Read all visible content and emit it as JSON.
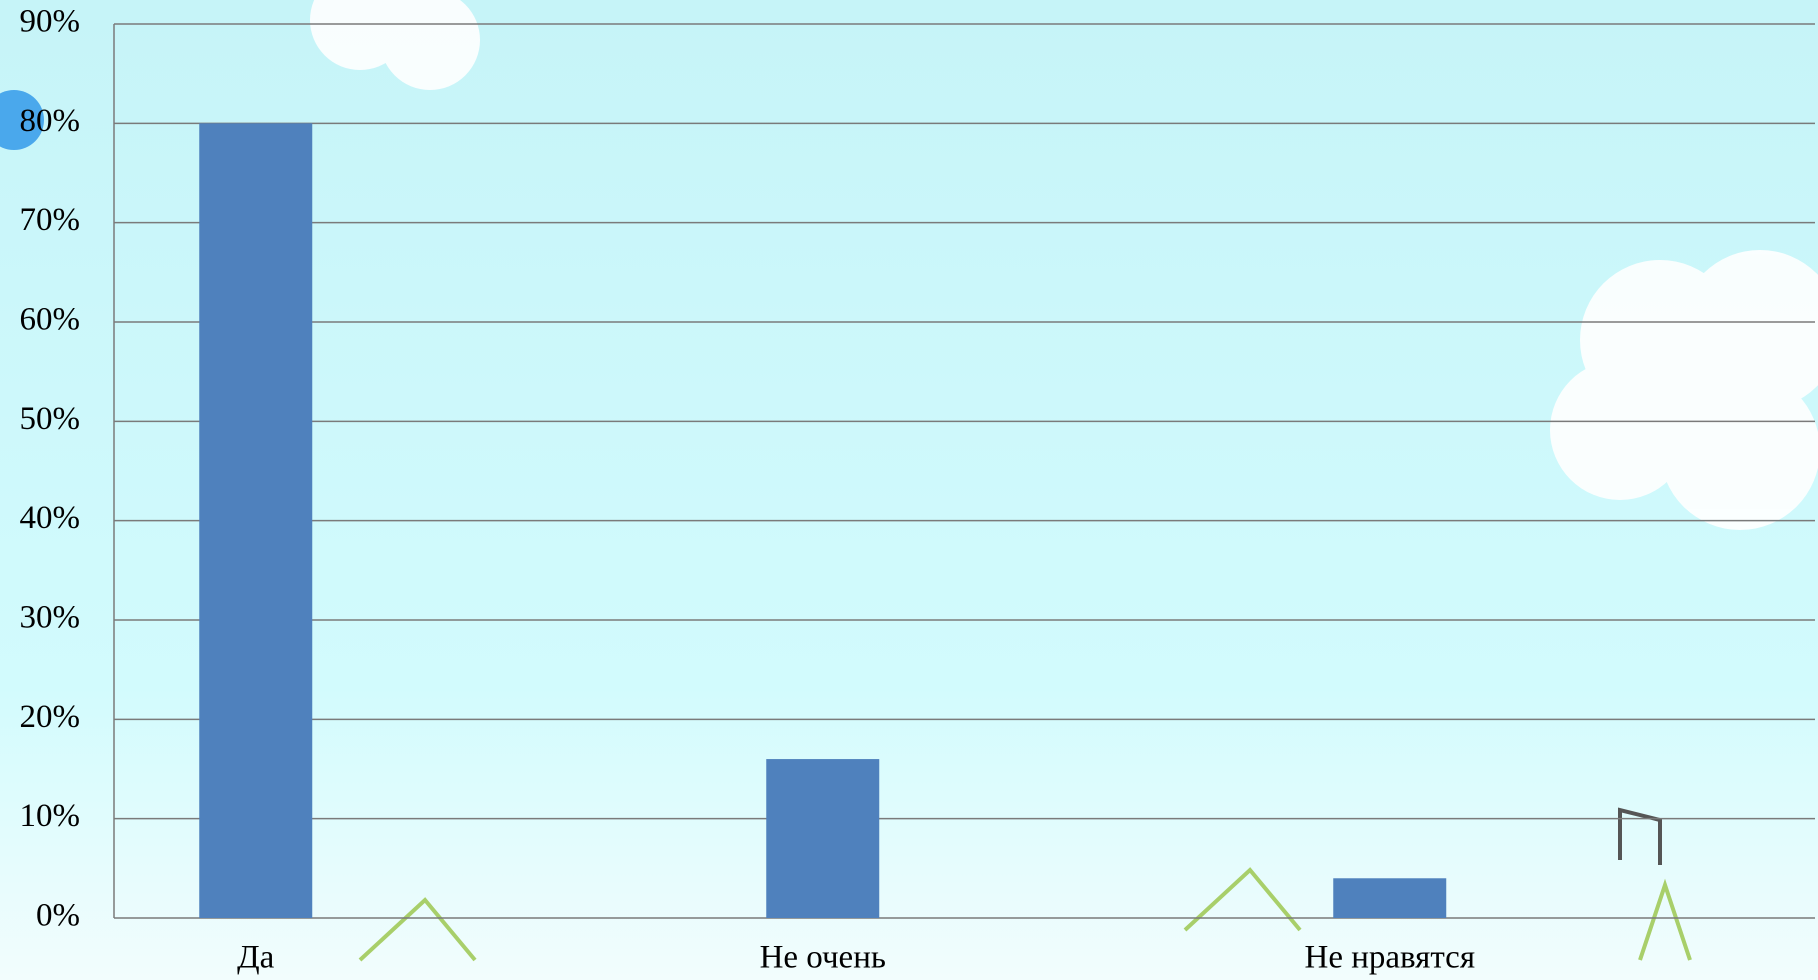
{
  "chart_data": {
    "type": "bar",
    "categories": [
      "Да",
      "Не очень",
      "Не нравятся"
    ],
    "values": [
      80,
      16,
      4
    ],
    "color": "#4f81bd",
    "ylim": [
      0,
      90
    ],
    "yticks": [
      {
        "value": 0,
        "label": "0%"
      },
      {
        "value": 10,
        "label": "10%"
      },
      {
        "value": 20,
        "label": "20%"
      },
      {
        "value": 30,
        "label": "30%"
      },
      {
        "value": 40,
        "label": "40%"
      },
      {
        "value": 50,
        "label": "50%"
      },
      {
        "value": 60,
        "label": "60%"
      },
      {
        "value": 70,
        "label": "70%"
      },
      {
        "value": 80,
        "label": "80%"
      },
      {
        "value": 90,
        "label": "90%"
      }
    ],
    "grid": true
  }
}
